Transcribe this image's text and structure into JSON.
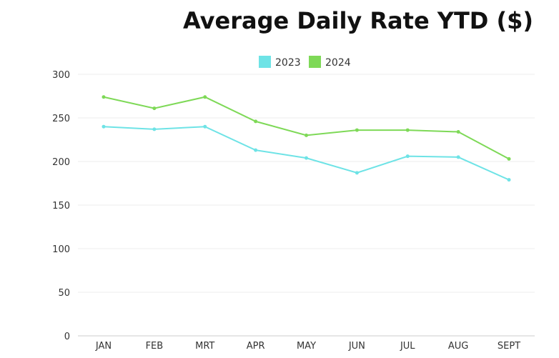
{
  "chart_data": {
    "type": "line",
    "title": "Average Daily Rate YTD ($)",
    "xlabel": "",
    "ylabel": "",
    "categories": [
      "JAN",
      "FEB",
      "MRT",
      "APR",
      "MAY",
      "JUN",
      "JUL",
      "AUG",
      "SEPT"
    ],
    "ylim": [
      0,
      300
    ],
    "yticks": [
      "0",
      "50",
      "100",
      "150",
      "200",
      "250",
      "300"
    ],
    "grid": true,
    "legend_position": "top-center",
    "series": [
      {
        "name": "2023",
        "color": "#6ee3e6",
        "values": [
          240,
          237,
          240,
          213,
          204,
          187,
          206,
          205,
          179
        ]
      },
      {
        "name": "2024",
        "color": "#7ed957",
        "values": [
          274,
          261,
          274,
          246,
          230,
          236,
          236,
          234,
          203
        ]
      }
    ]
  }
}
